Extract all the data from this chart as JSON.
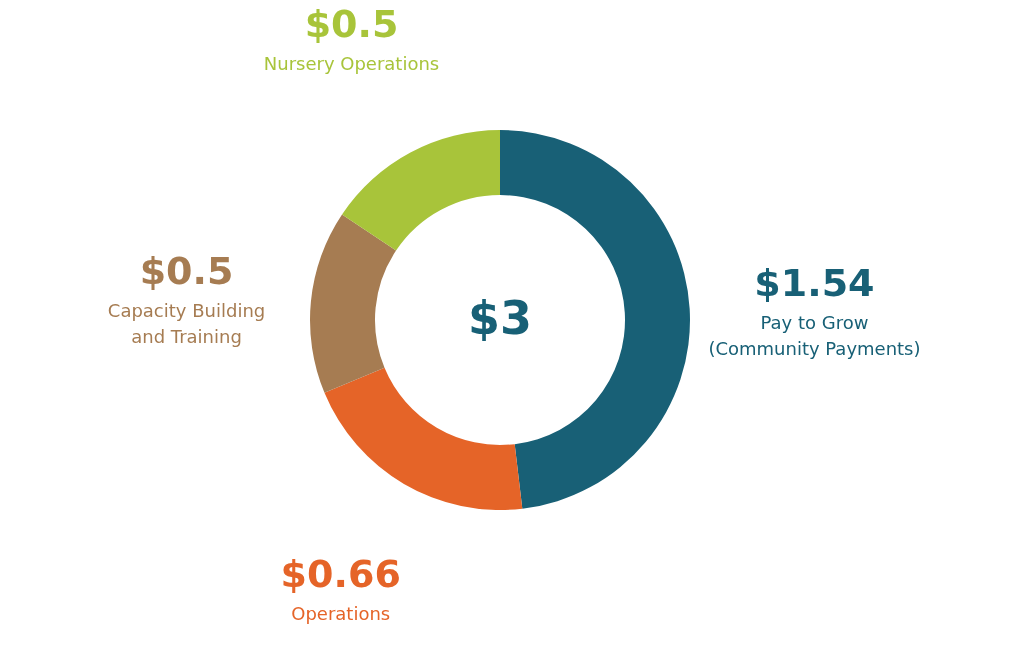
{
  "chart_data": {
    "type": "donut",
    "categories": [
      "Pay to Grow (Community Payments)",
      "Operations",
      "Capacity Building and Training",
      "Nursery Operations"
    ],
    "values": [
      1.54,
      0.66,
      0.5,
      0.5
    ],
    "value_labels": [
      "$1.54",
      "$0.66",
      "$0.5",
      "$0.5"
    ],
    "colors": [
      "#186076",
      "#e56428",
      "#a67c52",
      "#a8c43a"
    ],
    "annotations": [
      "$3"
    ]
  }
}
